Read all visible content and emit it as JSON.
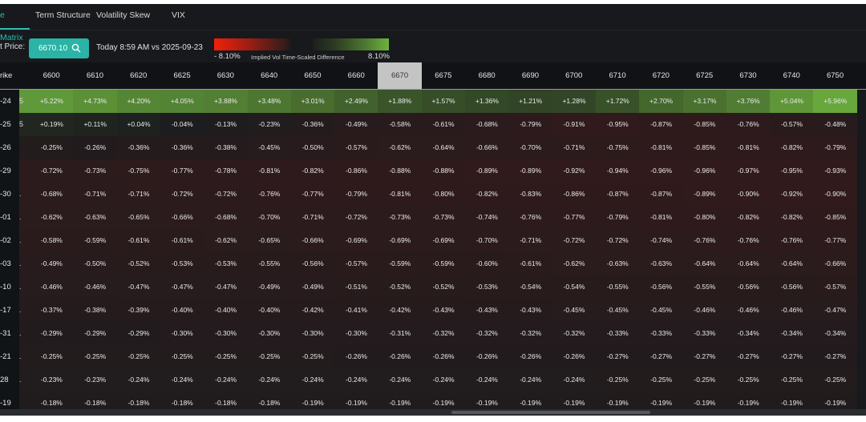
{
  "tabs": [
    {
      "label": "e Matrix",
      "active": true
    },
    {
      "label": "Term Structure"
    },
    {
      "label": "Volatility Skew"
    },
    {
      "label": "VIX"
    }
  ],
  "controls": {
    "price_label": "t Price:",
    "price_value": "6670.10",
    "price_icon": "search-icon",
    "comparison": "Today 8:59 AM vs 2025-09-23"
  },
  "legend": {
    "min": "- 8.10%",
    "title": "Implied Vol Time-Scaled Difference",
    "max": "8.10%",
    "neg_color": "#f0200a",
    "pos_color": "#6db33f"
  },
  "table": {
    "corner": "rike",
    "current_strike": "6670",
    "strikes": [
      "6600",
      "6610",
      "6620",
      "6625",
      "6630",
      "6640",
      "6650",
      "6660",
      "6670",
      "6675",
      "6680",
      "6690",
      "6700",
      "6710",
      "6720",
      "6725",
      "6730",
      "6740",
      "6750"
    ],
    "rows": [
      {
        "label": "-24",
        "clip": "5",
        "values": [
          "+5.22%",
          "+4.73%",
          "+4.20%",
          "+4.05%",
          "+3.88%",
          "+3.48%",
          "+3.01%",
          "+2.49%",
          "+1.88%",
          "+1.57%",
          "+1.36%",
          "+1.21%",
          "+1.28%",
          "+1.72%",
          "+2.70%",
          "+3.17%",
          "+3.76%",
          "+5.04%",
          "+5.96%"
        ]
      },
      {
        "label": "-25",
        "clip": "5",
        "values": [
          "+0.19%",
          "+0.11%",
          "+0.04%",
          "-0.04%",
          "-0.13%",
          "-0.23%",
          "-0.36%",
          "-0.49%",
          "-0.58%",
          "-0.61%",
          "-0.68%",
          "-0.79%",
          "-0.91%",
          "-0.95%",
          "-0.87%",
          "-0.85%",
          "-0.76%",
          "-0.57%",
          "-0.48%"
        ]
      },
      {
        "label": "-26",
        "clip": "",
        "values": [
          "-0.25%",
          "-0.26%",
          "-0.36%",
          "-0.36%",
          "-0.38%",
          "-0.45%",
          "-0.50%",
          "-0.57%",
          "-0.62%",
          "-0.64%",
          "-0.66%",
          "-0.70%",
          "-0.71%",
          "-0.75%",
          "-0.81%",
          "-0.85%",
          "-0.81%",
          "-0.82%",
          "-0.79%"
        ]
      },
      {
        "label": "-29",
        "clip": "",
        "values": [
          "-0.72%",
          "-0.73%",
          "-0.75%",
          "-0.77%",
          "-0.78%",
          "-0.81%",
          "-0.82%",
          "-0.86%",
          "-0.88%",
          "-0.88%",
          "-0.89%",
          "-0.89%",
          "-0.92%",
          "-0.94%",
          "-0.96%",
          "-0.96%",
          "-0.97%",
          "-0.95%",
          "-0.93%"
        ]
      },
      {
        "label": "-30",
        "clip": ".",
        "values": [
          "-0.68%",
          "-0.71%",
          "-0.71%",
          "-0.72%",
          "-0.72%",
          "-0.76%",
          "-0.77%",
          "-0.79%",
          "-0.81%",
          "-0.80%",
          "-0.82%",
          "-0.83%",
          "-0.86%",
          "-0.87%",
          "-0.87%",
          "-0.89%",
          "-0.90%",
          "-0.92%",
          "-0.90%"
        ]
      },
      {
        "label": "-01",
        "clip": ".",
        "values": [
          "-0.62%",
          "-0.63%",
          "-0.65%",
          "-0.66%",
          "-0.68%",
          "-0.70%",
          "-0.71%",
          "-0.72%",
          "-0.73%",
          "-0.73%",
          "-0.74%",
          "-0.76%",
          "-0.77%",
          "-0.79%",
          "-0.81%",
          "-0.80%",
          "-0.82%",
          "-0.82%",
          "-0.85%"
        ]
      },
      {
        "label": "-02",
        "clip": ".",
        "values": [
          "-0.58%",
          "-0.59%",
          "-0.61%",
          "-0.61%",
          "-0.62%",
          "-0.65%",
          "-0.66%",
          "-0.69%",
          "-0.69%",
          "-0.69%",
          "-0.70%",
          "-0.71%",
          "-0.72%",
          "-0.72%",
          "-0.74%",
          "-0.76%",
          "-0.76%",
          "-0.76%",
          "-0.77%"
        ]
      },
      {
        "label": "-03",
        "clip": ".",
        "values": [
          "-0.49%",
          "-0.50%",
          "-0.52%",
          "-0.53%",
          "-0.53%",
          "-0.55%",
          "-0.56%",
          "-0.57%",
          "-0.59%",
          "-0.59%",
          "-0.60%",
          "-0.61%",
          "-0.62%",
          "-0.63%",
          "-0.63%",
          "-0.64%",
          "-0.64%",
          "-0.64%",
          "-0.66%"
        ]
      },
      {
        "label": "-10",
        "clip": ".",
        "values": [
          "-0.46%",
          "-0.46%",
          "-0.47%",
          "-0.47%",
          "-0.47%",
          "-0.49%",
          "-0.49%",
          "-0.51%",
          "-0.52%",
          "-0.52%",
          "-0.53%",
          "-0.54%",
          "-0.54%",
          "-0.55%",
          "-0.56%",
          "-0.55%",
          "-0.56%",
          "-0.56%",
          "-0.57%"
        ]
      },
      {
        "label": "-17",
        "clip": ".",
        "values": [
          "-0.37%",
          "-0.38%",
          "-0.39%",
          "-0.40%",
          "-0.40%",
          "-0.40%",
          "-0.42%",
          "-0.41%",
          "-0.42%",
          "-0.43%",
          "-0.43%",
          "-0.43%",
          "-0.45%",
          "-0.45%",
          "-0.45%",
          "-0.46%",
          "-0.46%",
          "-0.46%",
          "-0.47%"
        ]
      },
      {
        "label": "-31",
        "clip": ".",
        "values": [
          "-0.29%",
          "-0.29%",
          "-0.29%",
          "-0.30%",
          "-0.30%",
          "-0.30%",
          "-0.30%",
          "-0.30%",
          "-0.31%",
          "-0.32%",
          "-0.32%",
          "-0.32%",
          "-0.32%",
          "-0.33%",
          "-0.33%",
          "-0.33%",
          "-0.34%",
          "-0.34%",
          "-0.34%"
        ]
      },
      {
        "label": "-21",
        "clip": ".",
        "values": [
          "-0.25%",
          "-0.25%",
          "-0.25%",
          "-0.25%",
          "-0.25%",
          "-0.25%",
          "-0.25%",
          "-0.26%",
          "-0.26%",
          "-0.26%",
          "-0.26%",
          "-0.26%",
          "-0.26%",
          "-0.27%",
          "-0.27%",
          "-0.27%",
          "-0.27%",
          "-0.27%",
          "-0.27%"
        ]
      },
      {
        "label": "28",
        "clip": ".",
        "values": [
          "-0.23%",
          "-0.23%",
          "-0.24%",
          "-0.24%",
          "-0.24%",
          "-0.24%",
          "-0.24%",
          "-0.24%",
          "-0.24%",
          "-0.24%",
          "-0.24%",
          "-0.24%",
          "-0.24%",
          "-0.25%",
          "-0.25%",
          "-0.25%",
          "-0.25%",
          "-0.25%",
          "-0.25%"
        ]
      },
      {
        "label": "-19",
        "clip": "",
        "values": [
          "-0.18%",
          "-0.18%",
          "-0.18%",
          "-0.18%",
          "-0.18%",
          "-0.18%",
          "-0.19%",
          "-0.19%",
          "-0.19%",
          "-0.19%",
          "-0.19%",
          "-0.19%",
          "-0.19%",
          "-0.19%",
          "-0.19%",
          "-0.19%",
          "-0.19%",
          "-0.19%",
          "-0.19%"
        ]
      }
    ]
  }
}
